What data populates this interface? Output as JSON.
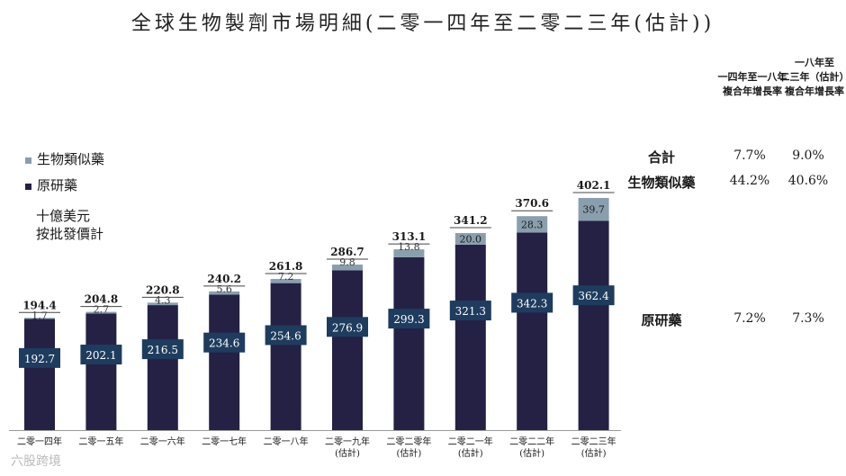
{
  "title": "全球生物製劑市場明細(二零一四年至二零二三年(估計))",
  "legend": {
    "biosimilar": "生物類似藥",
    "originator": "原研藥",
    "colors": {
      "biosimilar": "#8a9fad",
      "originator": "#242145",
      "label_box": "#1e3c5e"
    }
  },
  "unit": {
    "line1": "十億美元",
    "line2": "按批發價計"
  },
  "cagr": {
    "col1_header": [
      "一四年至一八年",
      "複合年增長率"
    ],
    "col2_header": [
      "一八年至",
      "二三年（估計）",
      "複合年增長率"
    ],
    "rows": [
      {
        "label": "合計",
        "v1": "7.7%",
        "v2": "9.0%"
      },
      {
        "label": "生物類似藥",
        "v1": "44.2%",
        "v2": "40.6%"
      },
      {
        "label": "原研藥",
        "v1": "7.2%",
        "v2": "7.3%"
      }
    ]
  },
  "chart_data": {
    "type": "bar",
    "stacked": true,
    "categories": [
      [
        "二零一四年"
      ],
      [
        "二零一五年"
      ],
      [
        "二零一六年"
      ],
      [
        "二零一七年"
      ],
      [
        "二零一八年"
      ],
      [
        "二零一九年",
        "(估計)"
      ],
      [
        "二零二零年",
        "(估計)"
      ],
      [
        "二零二一年",
        "(估計)"
      ],
      [
        "二零二二年",
        "(估計)"
      ],
      [
        "二零二三年",
        "(估計)"
      ]
    ],
    "series": [
      {
        "name": "原研藥",
        "values": [
          192.7,
          202.1,
          216.5,
          234.6,
          254.6,
          276.9,
          299.3,
          321.3,
          342.3,
          362.4
        ]
      },
      {
        "name": "生物類似藥",
        "values": [
          1.7,
          2.7,
          4.3,
          5.6,
          7.2,
          9.8,
          13.8,
          20.0,
          28.3,
          39.7
        ]
      }
    ],
    "totals": [
      194.4,
      204.8,
      220.8,
      240.2,
      261.8,
      286.7,
      313.1,
      341.2,
      370.6,
      402.1
    ],
    "ylim": [
      0,
      402.1
    ],
    "grid": false
  },
  "watermark": "六股跨境"
}
